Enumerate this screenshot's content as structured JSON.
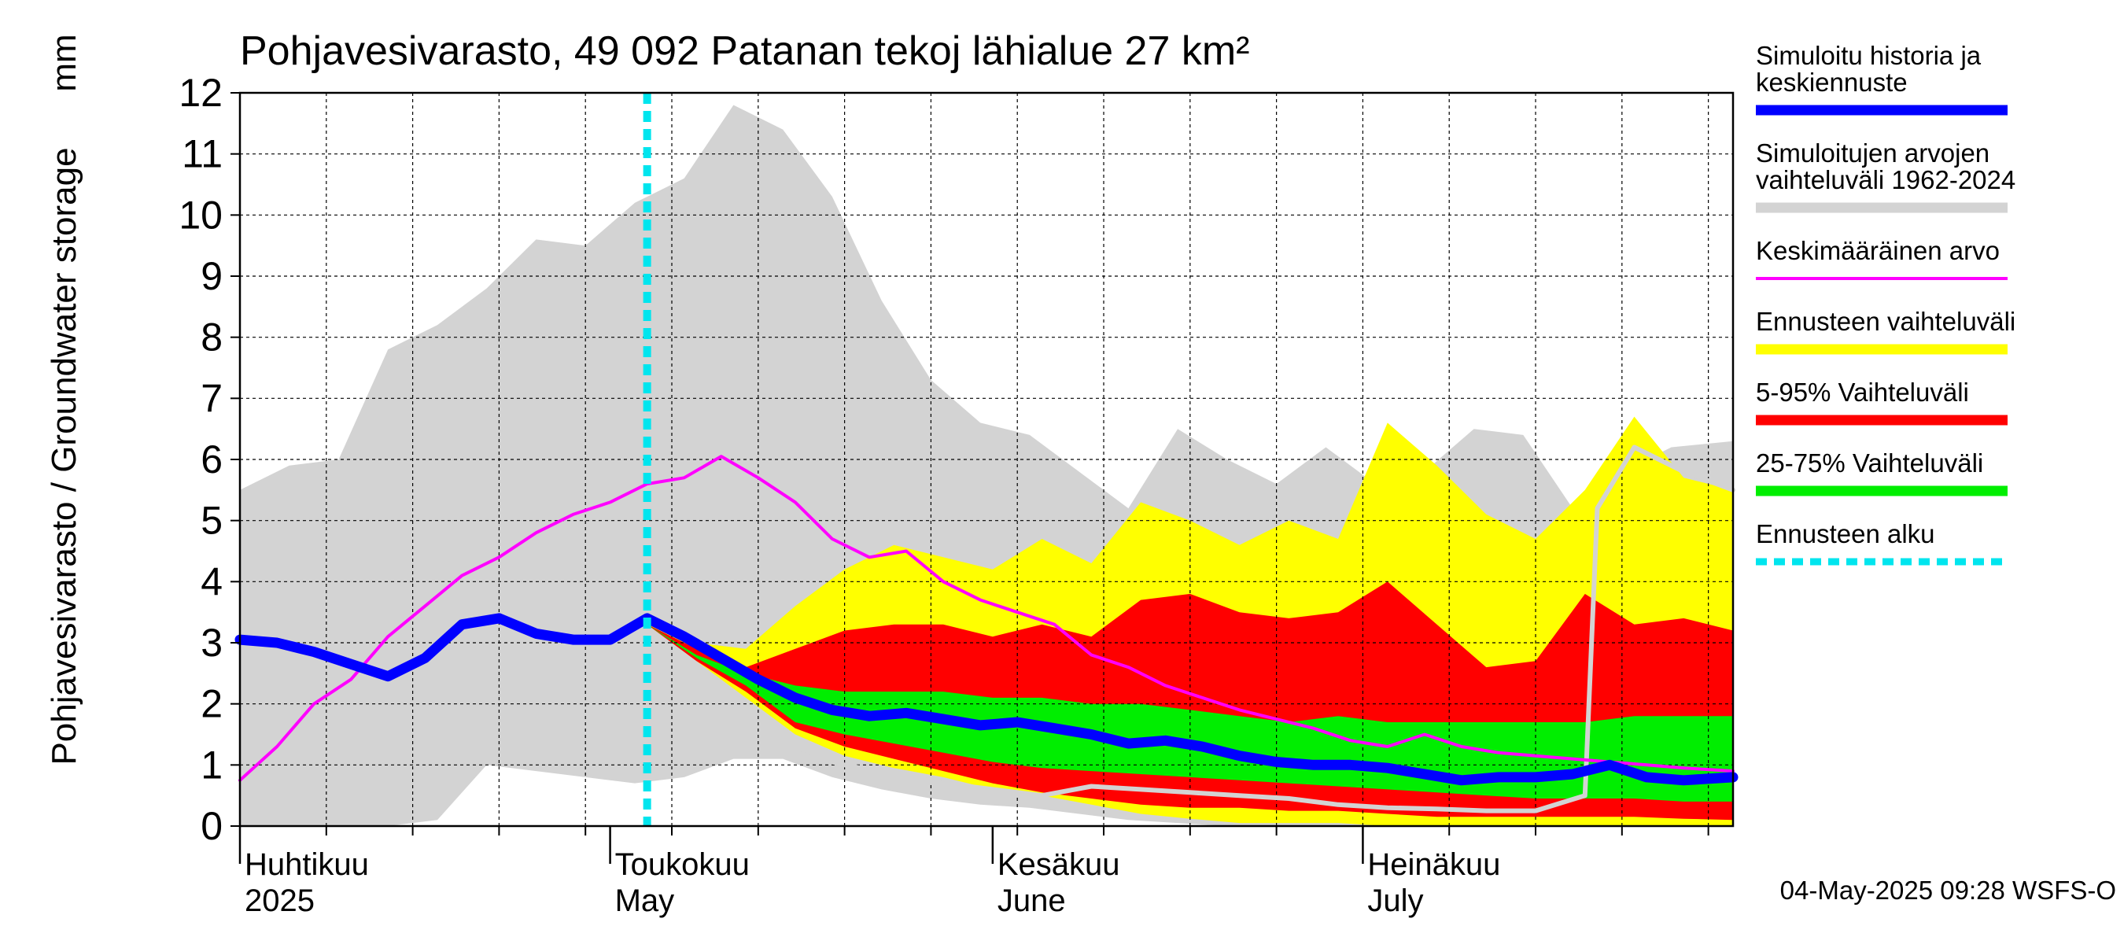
{
  "chart_data": {
    "type": "area",
    "title": "Pohjavesivarasto, 49 092 Patanan tekoj lähialue 27 km²",
    "ylabel": "Pohjavesivarasto / Groundwater storage",
    "yunit": "mm",
    "ylim": [
      0,
      12
    ],
    "yticks": [
      "0",
      "1",
      "2",
      "3",
      "4",
      "5",
      "6",
      "7",
      "8",
      "9",
      "10",
      "11",
      "12"
    ],
    "xlim": [
      "2025-04-01",
      "2025-07-31"
    ],
    "month_labels": [
      {
        "date": "2025-04-01",
        "fi": "Huhtikuu",
        "en": "2025"
      },
      {
        "date": "2025-05-01",
        "fi": "Toukokuu",
        "en": "May"
      },
      {
        "date": "2025-06-01",
        "fi": "Kesäkuu",
        "en": "June"
      },
      {
        "date": "2025-07-01",
        "fi": "Heinäkuu",
        "en": "July"
      }
    ],
    "forecast_start": "2025-05-04",
    "footer": "04-May-2025 09:28 WSFS-O",
    "grid": true,
    "legend_position": "right",
    "colors": {
      "history_range": "#d3d3d3",
      "forecast_range": "#ffff00",
      "p5_95": "#ff0000",
      "p25_75": "#00ee00",
      "mean": "#ff00ff",
      "median": "#0000ff",
      "forecast_start": "#00e5ee",
      "history_min_line": "#d3d3d3"
    },
    "legend": [
      {
        "key": "median",
        "label1": "Simuloitu historia ja",
        "label2": "keskiennuste",
        "style": "thick"
      },
      {
        "key": "history_range",
        "label1": "Simuloitujen arvojen",
        "label2": "vaihteluväli 1962-2024",
        "style": "thick"
      },
      {
        "key": "mean",
        "label1": "Keskimääräinen arvo",
        "label2": "",
        "style": "thin"
      },
      {
        "key": "forecast_range",
        "label1": "Ennusteen vaihteluväli",
        "label2": "",
        "style": "thick"
      },
      {
        "key": "p5_95",
        "label1": "5-95% Vaihteluväli",
        "label2": "",
        "style": "thick"
      },
      {
        "key": "p25_75",
        "label1": "25-75% Vaihteluväli",
        "label2": "",
        "style": "thick"
      },
      {
        "key": "forecast_start",
        "label1": "Ennusteen alku",
        "label2": "",
        "style": "dashed"
      }
    ],
    "series": [
      {
        "key": "history_range",
        "x": [
          "2025-04-01",
          "2025-04-05",
          "2025-04-09",
          "2025-04-13",
          "2025-04-17",
          "2025-04-21",
          "2025-04-25",
          "2025-04-29",
          "2025-05-03",
          "2025-05-07",
          "2025-05-11",
          "2025-05-15",
          "2025-05-19",
          "2025-05-23",
          "2025-05-27",
          "2025-05-31",
          "2025-06-04",
          "2025-06-08",
          "2025-06-12",
          "2025-06-16",
          "2025-06-20",
          "2025-06-24",
          "2025-06-28",
          "2025-07-02",
          "2025-07-06",
          "2025-07-10",
          "2025-07-14",
          "2025-07-18",
          "2025-07-22",
          "2025-07-26",
          "2025-07-31"
        ],
        "upper": [
          5.5,
          5.9,
          6.0,
          7.8,
          8.2,
          8.8,
          9.6,
          9.5,
          10.2,
          10.6,
          11.8,
          11.4,
          10.3,
          8.6,
          7.3,
          6.6,
          6.4,
          5.8,
          5.2,
          6.5,
          6.0,
          5.6,
          6.2,
          5.6,
          5.8,
          6.5,
          6.4,
          5.2,
          5.8,
          6.2,
          6.3
        ],
        "lower": [
          0,
          0,
          0,
          0,
          0.1,
          1.0,
          0.9,
          0.8,
          0.7,
          0.8,
          1.1,
          1.1,
          0.8,
          0.6,
          0.45,
          0.35,
          0.3,
          0.2,
          0.1,
          0.05,
          0,
          0,
          0,
          0,
          0,
          0,
          0,
          0,
          0,
          0,
          0
        ]
      },
      {
        "key": "forecast_range",
        "x": [
          "2025-05-04",
          "2025-05-08",
          "2025-05-12",
          "2025-05-16",
          "2025-05-20",
          "2025-05-24",
          "2025-05-28",
          "2025-06-01",
          "2025-06-05",
          "2025-06-09",
          "2025-06-13",
          "2025-06-17",
          "2025-06-21",
          "2025-06-25",
          "2025-06-29",
          "2025-07-03",
          "2025-07-07",
          "2025-07-11",
          "2025-07-15",
          "2025-07-19",
          "2025-07-23",
          "2025-07-27",
          "2025-07-31"
        ],
        "upper": [
          3.3,
          3.0,
          2.9,
          3.6,
          4.2,
          4.6,
          4.4,
          4.2,
          4.7,
          4.3,
          5.3,
          5.0,
          4.6,
          5.0,
          4.7,
          6.6,
          5.9,
          5.1,
          4.7,
          5.5,
          6.7,
          5.7,
          5.5
        ],
        "lower": [
          3.3,
          2.7,
          2.1,
          1.5,
          1.15,
          0.95,
          0.8,
          0.6,
          0.5,
          0.35,
          0.2,
          0.12,
          0.05,
          0.05,
          0.05,
          0,
          0,
          0,
          0,
          0,
          0,
          0,
          0
        ]
      },
      {
        "key": "p5_95",
        "x": [
          "2025-05-04",
          "2025-05-08",
          "2025-05-12",
          "2025-05-16",
          "2025-05-20",
          "2025-05-24",
          "2025-05-28",
          "2025-06-01",
          "2025-06-05",
          "2025-06-09",
          "2025-06-13",
          "2025-06-17",
          "2025-06-21",
          "2025-06-25",
          "2025-06-29",
          "2025-07-03",
          "2025-07-07",
          "2025-07-11",
          "2025-07-15",
          "2025-07-19",
          "2025-07-23",
          "2025-07-27",
          "2025-07-31"
        ],
        "upper": [
          3.3,
          2.9,
          2.6,
          2.9,
          3.2,
          3.3,
          3.3,
          3.1,
          3.3,
          3.1,
          3.7,
          3.8,
          3.5,
          3.4,
          3.5,
          4.0,
          3.3,
          2.6,
          2.7,
          3.8,
          3.3,
          3.4,
          3.2
        ],
        "lower": [
          3.3,
          2.7,
          2.2,
          1.6,
          1.3,
          1.1,
          0.9,
          0.7,
          0.55,
          0.45,
          0.35,
          0.3,
          0.3,
          0.25,
          0.25,
          0.2,
          0.15,
          0.15,
          0.15,
          0.15,
          0.15,
          0.12,
          0.1
        ]
      },
      {
        "key": "p25_75",
        "x": [
          "2025-05-04",
          "2025-05-08",
          "2025-05-12",
          "2025-05-16",
          "2025-05-20",
          "2025-05-24",
          "2025-05-28",
          "2025-06-01",
          "2025-06-05",
          "2025-06-09",
          "2025-06-13",
          "2025-06-17",
          "2025-06-21",
          "2025-06-25",
          "2025-06-29",
          "2025-07-03",
          "2025-07-07",
          "2025-07-11",
          "2025-07-15",
          "2025-07-19",
          "2025-07-23",
          "2025-07-27",
          "2025-07-31"
        ],
        "upper": [
          3.3,
          2.8,
          2.5,
          2.3,
          2.2,
          2.2,
          2.2,
          2.1,
          2.1,
          2.0,
          2.0,
          1.9,
          1.8,
          1.7,
          1.8,
          1.7,
          1.7,
          1.7,
          1.7,
          1.7,
          1.8,
          1.8,
          1.8
        ],
        "lower": [
          3.3,
          2.75,
          2.3,
          1.7,
          1.5,
          1.35,
          1.2,
          1.05,
          0.95,
          0.9,
          0.85,
          0.8,
          0.75,
          0.7,
          0.65,
          0.6,
          0.55,
          0.5,
          0.45,
          0.45,
          0.45,
          0.4,
          0.4
        ]
      },
      {
        "key": "history_min_line",
        "x": [
          "2025-05-16",
          "2025-05-20",
          "2025-05-24",
          "2025-05-28",
          "2025-06-01",
          "2025-06-05",
          "2025-06-09",
          "2025-06-13",
          "2025-06-17",
          "2025-06-21",
          "2025-06-25",
          "2025-06-29",
          "2025-07-03",
          "2025-07-07",
          "2025-07-11",
          "2025-07-15",
          "2025-07-19",
          "2025-07-20",
          "2025-07-23",
          "2025-07-27",
          "2025-07-31"
        ],
        "values": [
          1.2,
          1.0,
          0.85,
          0.7,
          0.6,
          0.5,
          0.65,
          0.6,
          0.55,
          0.5,
          0.45,
          0.35,
          0.3,
          0.28,
          0.25,
          0.25,
          0.5,
          5.2,
          6.2,
          5.8,
          5.5
        ]
      },
      {
        "key": "mean",
        "x": [
          "2025-04-01",
          "2025-04-04",
          "2025-04-07",
          "2025-04-10",
          "2025-04-13",
          "2025-04-16",
          "2025-04-19",
          "2025-04-22",
          "2025-04-25",
          "2025-04-28",
          "2025-05-01",
          "2025-05-04",
          "2025-05-07",
          "2025-05-10",
          "2025-05-13",
          "2025-05-16",
          "2025-05-19",
          "2025-05-22",
          "2025-05-25",
          "2025-05-28",
          "2025-05-31",
          "2025-06-03",
          "2025-06-06",
          "2025-06-09",
          "2025-06-12",
          "2025-06-15",
          "2025-06-18",
          "2025-06-21",
          "2025-06-24",
          "2025-06-27",
          "2025-06-30",
          "2025-07-03",
          "2025-07-06",
          "2025-07-09",
          "2025-07-12",
          "2025-07-15",
          "2025-07-18",
          "2025-07-21",
          "2025-07-24",
          "2025-07-27",
          "2025-07-31"
        ],
        "values": [
          0.75,
          1.3,
          2.0,
          2.4,
          3.1,
          3.6,
          4.1,
          4.4,
          4.8,
          5.1,
          5.3,
          5.6,
          5.7,
          6.05,
          5.7,
          5.3,
          4.7,
          4.4,
          4.5,
          4.0,
          3.7,
          3.5,
          3.3,
          2.8,
          2.6,
          2.3,
          2.1,
          1.9,
          1.75,
          1.6,
          1.4,
          1.3,
          1.5,
          1.3,
          1.2,
          1.15,
          1.1,
          1.05,
          1.0,
          0.95,
          0.9
        ]
      },
      {
        "key": "median",
        "x": [
          "2025-04-01",
          "2025-04-04",
          "2025-04-07",
          "2025-04-10",
          "2025-04-13",
          "2025-04-16",
          "2025-04-19",
          "2025-04-22",
          "2025-04-25",
          "2025-04-28",
          "2025-05-01",
          "2025-05-04",
          "2025-05-07",
          "2025-05-10",
          "2025-05-13",
          "2025-05-16",
          "2025-05-19",
          "2025-05-22",
          "2025-05-25",
          "2025-05-28",
          "2025-05-31",
          "2025-06-03",
          "2025-06-06",
          "2025-06-09",
          "2025-06-12",
          "2025-06-15",
          "2025-06-18",
          "2025-06-21",
          "2025-06-24",
          "2025-06-27",
          "2025-06-30",
          "2025-07-03",
          "2025-07-06",
          "2025-07-09",
          "2025-07-12",
          "2025-07-15",
          "2025-07-18",
          "2025-07-21",
          "2025-07-24",
          "2025-07-27",
          "2025-07-31"
        ],
        "values": [
          3.05,
          3.0,
          2.85,
          2.65,
          2.45,
          2.75,
          3.3,
          3.4,
          3.15,
          3.05,
          3.05,
          3.4,
          3.1,
          2.75,
          2.4,
          2.1,
          1.9,
          1.8,
          1.85,
          1.75,
          1.65,
          1.7,
          1.6,
          1.5,
          1.35,
          1.4,
          1.3,
          1.15,
          1.05,
          1.0,
          1.0,
          0.95,
          0.85,
          0.75,
          0.8,
          0.8,
          0.85,
          1.0,
          0.8,
          0.75,
          0.8
        ]
      }
    ]
  }
}
